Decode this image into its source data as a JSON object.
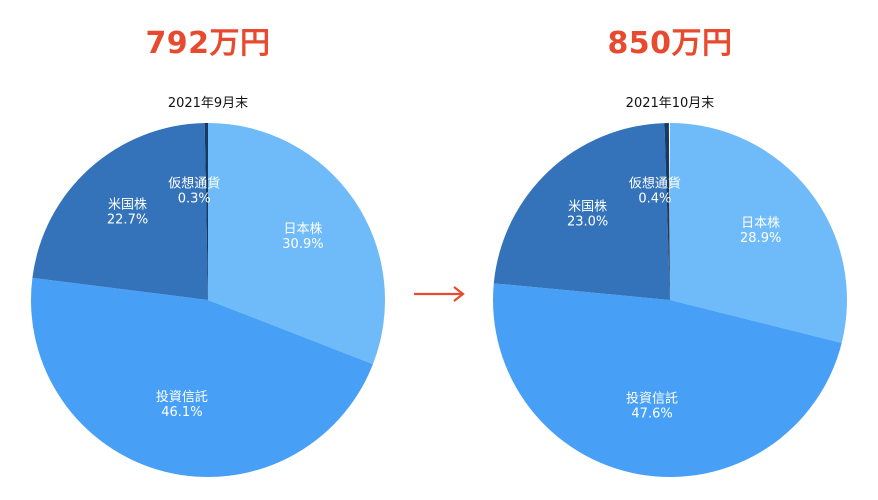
{
  "arrow_label": "→",
  "colors": {
    "total_text": "#e84a2f",
    "arrow": "#e84a2f",
    "日本株": "#6fbbf9",
    "投資信託": "#47a0f5",
    "米国株": "#3473ba",
    "仮想通貨": "#153a63"
  },
  "chart_data": [
    {
      "type": "pie",
      "total": "792万円",
      "title": "2021年9月末",
      "start_angle_deg": 0,
      "direction": "clockwise",
      "slices": [
        {
          "label": "日本株",
          "percent": 30.9,
          "percent_text": "30.9%"
        },
        {
          "label": "投資信託",
          "percent": 46.1,
          "percent_text": "46.1%"
        },
        {
          "label": "米国株",
          "percent": 22.7,
          "percent_text": "22.7%"
        },
        {
          "label": "仮想通貨",
          "percent": 0.3,
          "percent_text": "0.3%"
        }
      ]
    },
    {
      "type": "pie",
      "total": "850万円",
      "title": "2021年10月末",
      "start_angle_deg": 0,
      "direction": "clockwise",
      "slices": [
        {
          "label": "日本株",
          "percent": 28.9,
          "percent_text": "28.9%"
        },
        {
          "label": "投資信託",
          "percent": 47.6,
          "percent_text": "47.6%"
        },
        {
          "label": "米国株",
          "percent": 23.0,
          "percent_text": "23.0%"
        },
        {
          "label": "仮想通貨",
          "percent": 0.4,
          "percent_text": "0.4%"
        }
      ]
    }
  ]
}
